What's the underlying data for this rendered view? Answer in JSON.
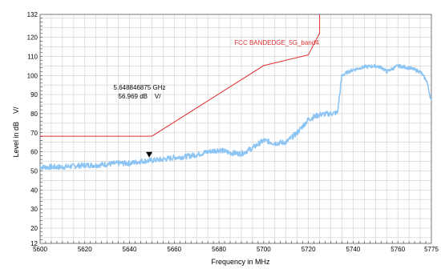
{
  "chart_data": {
    "type": "line",
    "xlabel": "Frequency in MHz",
    "ylabel": "Level in dB    V/",
    "xlim": [
      5600,
      5775
    ],
    "ylim": [
      12,
      132
    ],
    "x_ticks": [
      5600,
      5620,
      5640,
      5660,
      5680,
      5700,
      5720,
      5740,
      5760,
      5775
    ],
    "y_ticks": [
      12,
      20,
      30,
      40,
      50,
      60,
      70,
      80,
      90,
      100,
      110,
      120,
      132
    ],
    "grid": true,
    "colors": {
      "measurement": "#8cc4f4",
      "limit": "#e03030",
      "grid": "#cfcfcf"
    },
    "series": [
      {
        "name": "",
        "style": "measurement",
        "x": [
          5600,
          5605,
          5610,
          5615,
          5620,
          5625,
          5630,
          5635,
          5640,
          5645,
          5650,
          5655,
          5660,
          5665,
          5670,
          5675,
          5680,
          5685,
          5690,
          5695,
          5700,
          5705,
          5710,
          5715,
          5720,
          5725,
          5730,
          5733,
          5735,
          5738,
          5740,
          5745,
          5750,
          5753,
          5755,
          5760,
          5765,
          5770,
          5773,
          5775
        ],
        "y": [
          52,
          52,
          52,
          52.5,
          53,
          53,
          53.5,
          54,
          54,
          55,
          55.5,
          56,
          57,
          57.5,
          58.5,
          60,
          61,
          59.5,
          59,
          62,
          66,
          64.5,
          65,
          70,
          77,
          79.5,
          80,
          80.5,
          100,
          102,
          103,
          104.5,
          105,
          104,
          102,
          105,
          104,
          102,
          97,
          86
        ]
      },
      {
        "name": "FCC BANDEDGE_5G_band4",
        "style": "limit",
        "x": [
          5600,
          5650,
          5700,
          5720,
          5725,
          5725
        ],
        "y": [
          68.2,
          68.2,
          105.2,
          110.8,
          122.2,
          132
        ]
      }
    ],
    "annotations": [
      {
        "text": "5.648846875 GHz",
        "type": "marker",
        "x": 5648.8,
        "y": 57
      },
      {
        "text": "56.969 dB    V/",
        "type": "marker-value"
      },
      {
        "text": "FCC BANDEDGE_5G_band4",
        "type": "limit-label"
      }
    ]
  }
}
